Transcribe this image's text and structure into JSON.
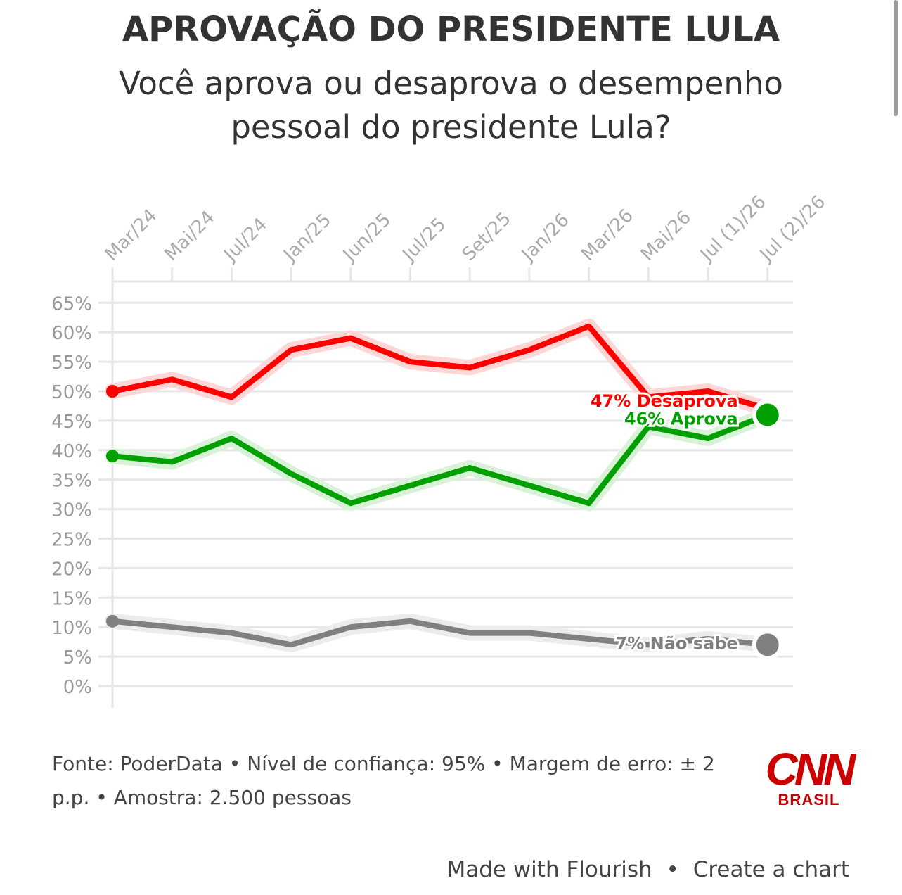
{
  "title": "APROVAÇÃO DO PRESIDENTE LULA",
  "subtitle": "Você aprova ou desaprova o desempenho pessoal do presidente Lula?",
  "footer": "Fonte: PoderData • Nível de confiança: 95% • Margem de erro: ± 2 p.p. • Amostra: 2.500 pessoas",
  "logo": {
    "mark": "CNN",
    "sub": "BRASIL"
  },
  "attribution": {
    "made_with": "Made with Flourish",
    "separator": "•",
    "create": "Create a chart"
  },
  "chart_data": {
    "type": "line",
    "categories": [
      "Mar/24",
      "Mai/24",
      "Jul/24",
      "Jan/25",
      "Jun/25",
      "Jul/25",
      "Set/25",
      "Jan/26",
      "Mar/26",
      "Mai/26",
      "Jul (1)/26",
      "Jul (2)/26"
    ],
    "y_ticks": [
      "65%",
      "60%",
      "55%",
      "50%",
      "45%",
      "40%",
      "35%",
      "30%",
      "25%",
      "20%",
      "15%",
      "10%",
      "5%",
      "0%"
    ],
    "ylim": [
      0,
      65
    ],
    "grid": true,
    "series": [
      {
        "name": "Desaprova",
        "color": "#ff0000",
        "values": [
          50,
          52,
          49,
          57,
          59,
          55,
          54,
          57,
          61,
          49,
          50,
          47
        ],
        "end_label": "47% Desaprova"
      },
      {
        "name": "Aprova",
        "color": "#00a000",
        "values": [
          39,
          38,
          42,
          36,
          31,
          34,
          37,
          34,
          31,
          44,
          42,
          46
        ],
        "end_label": "46% Aprova"
      },
      {
        "name": "Não sabe",
        "color": "#808080",
        "values": [
          11,
          10,
          9,
          7,
          10,
          11,
          9,
          9,
          8,
          7,
          8,
          7
        ],
        "end_label": "7% Não sabe"
      }
    ]
  }
}
